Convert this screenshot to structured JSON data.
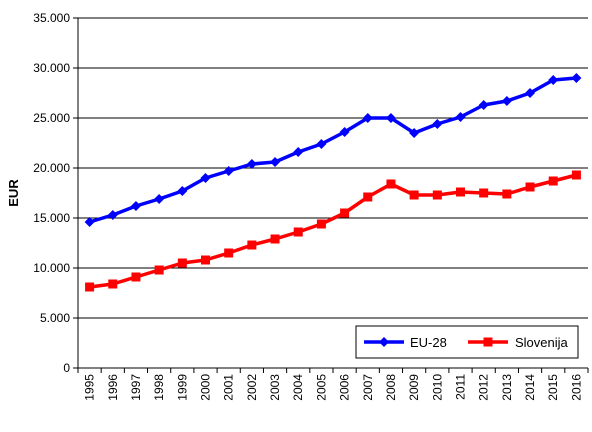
{
  "chart_data": {
    "type": "line",
    "title": "",
    "xlabel": "",
    "ylabel": "EUR",
    "ylim": [
      0,
      35000
    ],
    "y_ticks": [
      0,
      5000,
      10000,
      15000,
      20000,
      25000,
      30000,
      35000
    ],
    "y_tick_labels": [
      "0",
      "5.000",
      "10.000",
      "15.000",
      "20.000",
      "25.000",
      "30.000",
      "35.000"
    ],
    "grid": "horizontal",
    "legend_position": "bottom-right",
    "categories": [
      "1995",
      "1996",
      "1997",
      "1998",
      "1999",
      "2000",
      "2001",
      "2002",
      "2003",
      "2004",
      "2005",
      "2006",
      "2007",
      "2008",
      "2009",
      "2010",
      "2011",
      "2012",
      "2013",
      "2014",
      "2015",
      "2016"
    ],
    "series": [
      {
        "name": "EU-28",
        "color": "#0000ff",
        "marker": "diamond",
        "values": [
          14600,
          15300,
          16200,
          16900,
          17700,
          19000,
          19700,
          20400,
          20600,
          21600,
          22400,
          23600,
          25000,
          25000,
          23500,
          24400,
          25100,
          26300,
          26700,
          27500,
          28800,
          29000
        ]
      },
      {
        "name": "Slovenija",
        "color": "#ff0000",
        "marker": "square",
        "values": [
          8100,
          8400,
          9100,
          9800,
          10500,
          10800,
          11500,
          12300,
          12900,
          13600,
          14400,
          15500,
          17100,
          18400,
          17300,
          17300,
          17600,
          17500,
          17400,
          18100,
          18700,
          19300
        ]
      }
    ]
  }
}
